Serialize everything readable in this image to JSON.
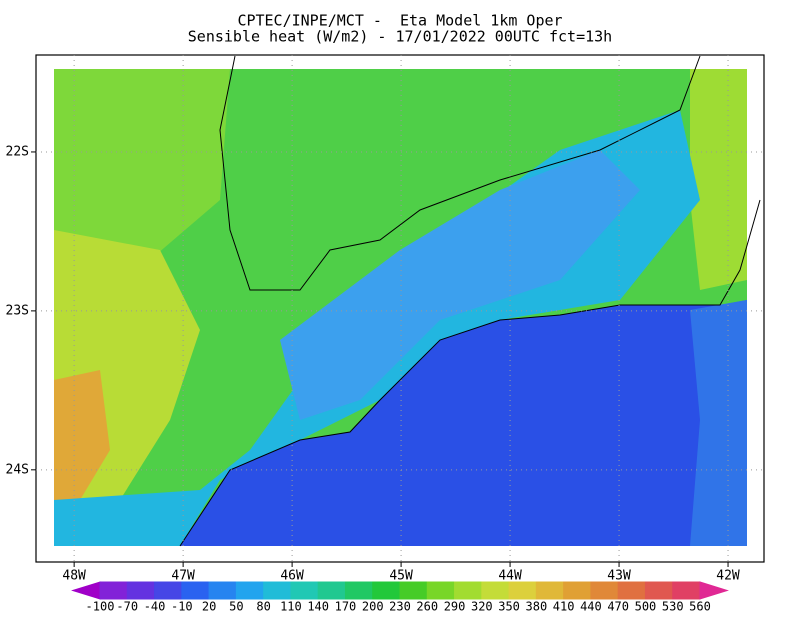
{
  "header": {
    "title": "CPTEC/INPE/MCT -  Eta Model 1km Oper",
    "subtitle": "Sensible heat (W/m2) - 17/01/2022 00UTC fct=13h"
  },
  "map": {
    "lon_lim": [
      -48.35,
      -41.67
    ],
    "lat_lim": [
      -21.39,
      -24.58
    ],
    "lon_ticks": [
      {
        "value": -48,
        "label": "48W"
      },
      {
        "value": -47,
        "label": "47W"
      },
      {
        "value": -46,
        "label": "46W"
      },
      {
        "value": -45,
        "label": "45W"
      },
      {
        "value": -44,
        "label": "44W"
      },
      {
        "value": -43,
        "label": "43W"
      },
      {
        "value": -42,
        "label": "42W"
      }
    ],
    "lat_ticks": [
      {
        "value": -22,
        "label": "22S"
      },
      {
        "value": -23,
        "label": "23S"
      },
      {
        "value": -24,
        "label": "24S"
      }
    ],
    "grid": true
  },
  "colorbar": {
    "levels": [
      -100,
      -70,
      -40,
      -10,
      20,
      50,
      80,
      110,
      140,
      170,
      200,
      230,
      260,
      290,
      320,
      350,
      380,
      410,
      440,
      470,
      500,
      530,
      560
    ],
    "colors": [
      "#a000c8",
      "#8222d8",
      "#6432e0",
      "#4646e6",
      "#2a62f0",
      "#2684f0",
      "#22a4ee",
      "#20bcd8",
      "#20c8b4",
      "#20c890",
      "#20c864",
      "#22c83a",
      "#46cc28",
      "#78d628",
      "#a2dc30",
      "#c4dc38",
      "#dcd03c",
      "#e0b838",
      "#e0a034",
      "#e08838",
      "#e07040",
      "#e05850",
      "#e04064",
      "#e02894"
    ]
  }
}
